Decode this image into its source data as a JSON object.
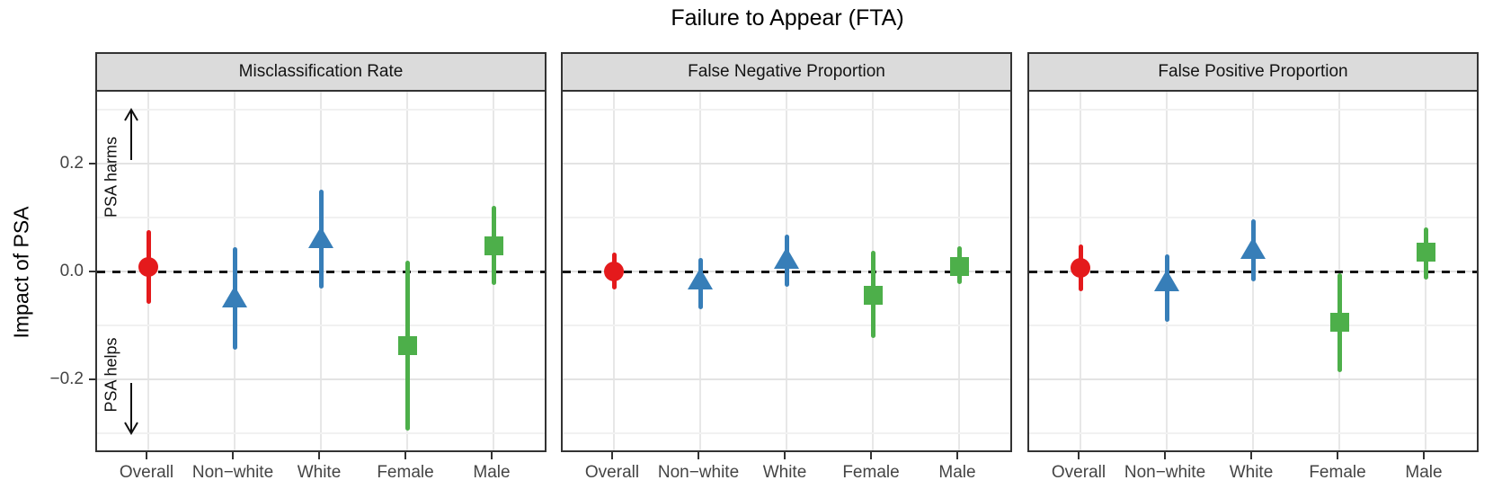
{
  "chart_data": {
    "type": "pointrange-faceted",
    "title": "Failure to Appear (FTA)",
    "ylabel": "Impact of PSA",
    "annotations": {
      "harms": "PSA harms",
      "helps": "PSA helps"
    },
    "categories": [
      "Overall",
      "Non−white",
      "White",
      "Female",
      "Male"
    ],
    "yticks": [
      {
        "label": "0.2",
        "value": 0.2
      },
      {
        "label": "0.0",
        "value": 0.0
      },
      {
        "label": "−0.2",
        "value": -0.2
      }
    ],
    "ylim": [
      -0.331,
      0.334
    ],
    "gridlines": {
      "major": [
        0.2,
        0.0,
        -0.2
      ],
      "minor": [
        0.3,
        0.1,
        -0.1,
        -0.3
      ]
    },
    "zero_line": 0,
    "legend": "none",
    "colors": {
      "overall_red": "#E41A1C",
      "race_blue": "#377EB8",
      "sex_green": "#4DAF4A",
      "grid_major": "#E3E3E3",
      "grid_minor": "#F1F1F1",
      "strip_bg": "#DBDBDB",
      "panel_border": "#333333",
      "axis_text": "#444444"
    },
    "panels": [
      {
        "label": "Misclassification Rate",
        "points": [
          {
            "category": "Overall",
            "group": "overall",
            "marker": "circle",
            "color": "#E41A1C",
            "est": 0.009,
            "lo": -0.059,
            "hi": 0.078
          },
          {
            "category": "Non−white",
            "group": "race",
            "marker": "triangle",
            "color": "#377EB8",
            "est": -0.052,
            "lo": -0.145,
            "hi": 0.046
          },
          {
            "category": "White",
            "group": "race",
            "marker": "triangle",
            "color": "#377EB8",
            "est": 0.058,
            "lo": -0.031,
            "hi": 0.152
          },
          {
            "category": "Female",
            "group": "sex",
            "marker": "square",
            "color": "#4DAF4A",
            "est": -0.137,
            "lo": -0.295,
            "hi": 0.02
          },
          {
            "category": "Male",
            "group": "sex",
            "marker": "square",
            "color": "#4DAF4A",
            "est": 0.049,
            "lo": -0.025,
            "hi": 0.122
          }
        ]
      },
      {
        "label": "False Negative Proportion",
        "points": [
          {
            "category": "Overall",
            "group": "overall",
            "marker": "circle",
            "color": "#E41A1C",
            "est": 0.001,
            "lo": -0.033,
            "hi": 0.036
          },
          {
            "category": "Non−white",
            "group": "race",
            "marker": "triangle",
            "color": "#377EB8",
            "est": -0.019,
            "lo": -0.069,
            "hi": 0.026
          },
          {
            "category": "White",
            "group": "race",
            "marker": "triangle",
            "color": "#377EB8",
            "est": 0.019,
            "lo": -0.028,
            "hi": 0.069
          },
          {
            "category": "Female",
            "group": "sex",
            "marker": "square",
            "color": "#4DAF4A",
            "est": -0.043,
            "lo": -0.122,
            "hi": 0.039
          },
          {
            "category": "Male",
            "group": "sex",
            "marker": "square",
            "color": "#4DAF4A",
            "est": 0.01,
            "lo": -0.022,
            "hi": 0.048
          }
        ]
      },
      {
        "label": "False Positive Proportion",
        "points": [
          {
            "category": "Overall",
            "group": "overall",
            "marker": "circle",
            "color": "#E41A1C",
            "est": 0.007,
            "lo": -0.036,
            "hi": 0.05
          },
          {
            "category": "Non−white",
            "group": "race",
            "marker": "triangle",
            "color": "#377EB8",
            "est": -0.022,
            "lo": -0.092,
            "hi": 0.033
          },
          {
            "category": "White",
            "group": "race",
            "marker": "triangle",
            "color": "#377EB8",
            "est": 0.038,
            "lo": -0.017,
            "hi": 0.097
          },
          {
            "category": "Female",
            "group": "sex",
            "marker": "square",
            "color": "#4DAF4A",
            "est": -0.094,
            "lo": -0.186,
            "hi": -0.003
          },
          {
            "category": "Male",
            "group": "sex",
            "marker": "square",
            "color": "#4DAF4A",
            "est": 0.036,
            "lo": -0.014,
            "hi": 0.083
          }
        ]
      }
    ]
  }
}
